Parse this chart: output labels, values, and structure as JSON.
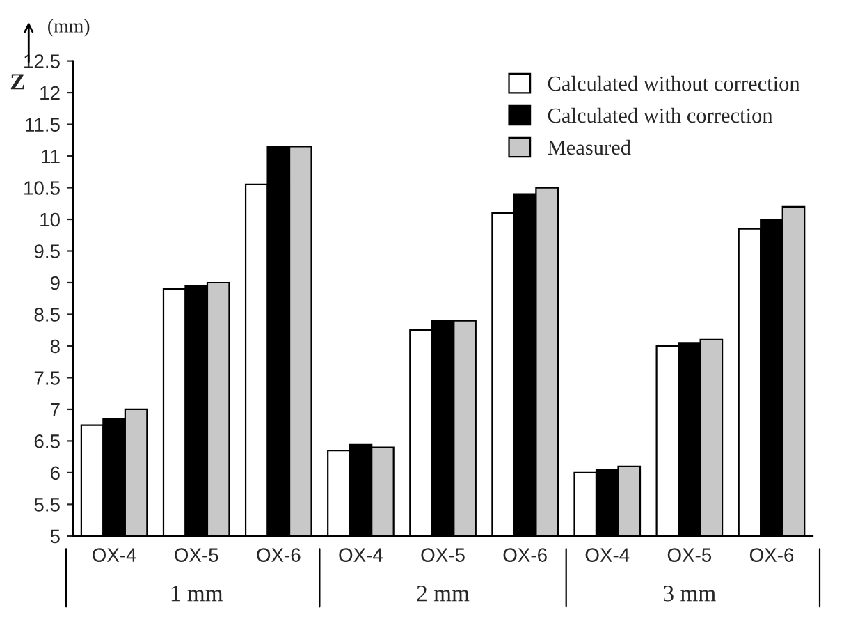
{
  "chart_data": {
    "type": "bar",
    "ylabel": "Z",
    "annotations": [
      "(mm)",
      "1 mm",
      "2 mm",
      "3 mm"
    ],
    "categories": [
      "OX-4",
      "OX-5",
      "OX-6",
      "OX-4",
      "OX-5",
      "OX-6",
      "OX-4",
      "OX-5",
      "OX-6"
    ],
    "series": [
      {
        "name": "Calculated without correction",
        "color": "#ffffff",
        "values": [
          6.75,
          8.9,
          10.55,
          6.35,
          8.25,
          10.1,
          6.0,
          8.0,
          9.85
        ]
      },
      {
        "name": "Calculated with correction",
        "color": "#000000",
        "values": [
          6.85,
          8.95,
          11.15,
          6.45,
          8.4,
          10.4,
          6.05,
          8.05,
          10.0
        ]
      },
      {
        "name": "Measured",
        "color": "#c8c8c8",
        "values": [
          7.0,
          9.0,
          11.15,
          6.4,
          8.4,
          10.5,
          6.1,
          8.1,
          10.2
        ]
      }
    ],
    "ylim": [
      5,
      12.5
    ],
    "yticks": [
      5,
      5.5,
      6,
      6.5,
      7,
      7.5,
      8,
      8.5,
      9,
      9.5,
      10,
      10.5,
      11,
      11.5,
      12,
      12.5
    ],
    "legend": "top right",
    "grid": false
  }
}
